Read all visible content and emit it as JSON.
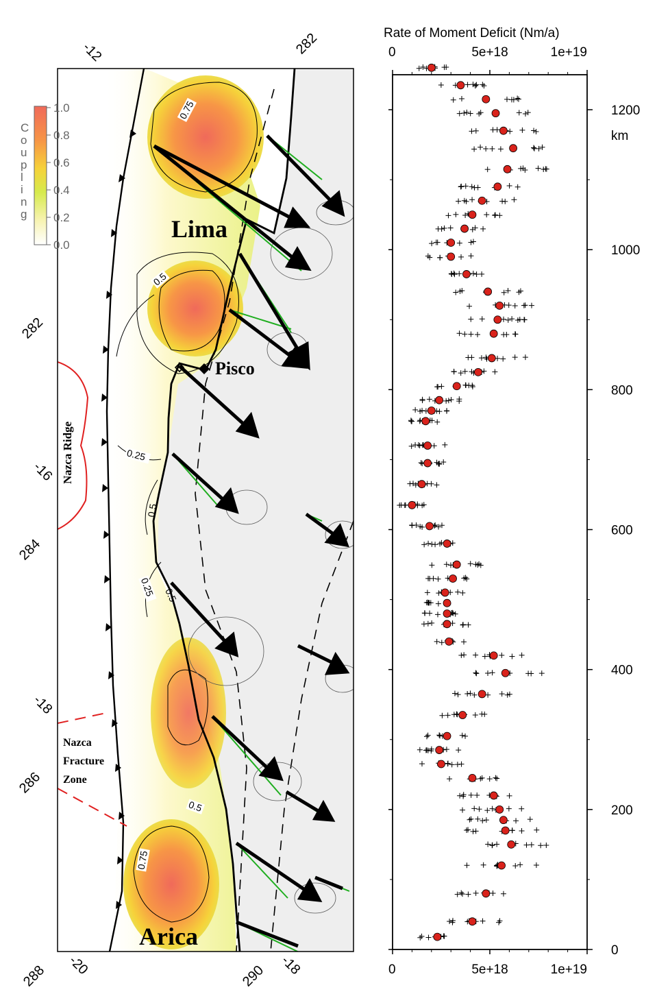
{
  "chart_data": [
    {
      "type": "map",
      "colorbar": {
        "label": "Coupling",
        "ticks": [
          "1.0",
          "0.8",
          "0.6",
          "0.4",
          "0.2",
          "0.0"
        ],
        "colors": [
          "#ffffff",
          "#f7f3b0",
          "#d6ea4c",
          "#f6d23a",
          "#f79646",
          "#f06a5a"
        ]
      },
      "frame_labels": {
        "top": [
          "-12",
          "282"
        ],
        "left": [
          "282",
          "-16",
          "284",
          "-18",
          "286"
        ],
        "bottom": [
          "288",
          "-20",
          "290",
          "-18"
        ]
      },
      "places": [
        "Lima",
        "Pisco",
        "Arica"
      ],
      "features": [
        "Nazca Ridge",
        "Nazca\nFracture\nZone"
      ],
      "contour_labels": [
        "0.75",
        "0.5",
        "0.25",
        "0.5",
        "0.25",
        "0.5",
        "0.5",
        "0.75"
      ]
    },
    {
      "type": "scatter",
      "title": "Rate of Moment Deficit (Nm/a)",
      "xlim": [
        0,
        1e+19
      ],
      "ylim": [
        0,
        1250
      ],
      "ylabel": "km",
      "x_ticks": [
        "0",
        "5e+18",
        "1e+19"
      ],
      "y_ticks": [
        "0",
        "200",
        "400",
        "600",
        "800",
        "1000",
        "1200"
      ],
      "series": [
        {
          "marker": "red circle",
          "color": "#d9231c",
          "x": [
            2.3e+18,
            4.1e+18,
            4.8e+18,
            5.6e+18,
            6.1e+18,
            5.8e+18,
            5.7e+18,
            5.5e+18,
            5.2e+18,
            4.1e+18,
            2.5e+18,
            2.4e+18,
            2.8e+18,
            3.6e+18,
            4.6e+18,
            5.8e+18,
            5.2e+18,
            2.9e+18,
            2.8e+18,
            2.8e+18,
            2.8e+18,
            2.7e+18,
            3.1e+18,
            3.3e+18,
            2.8e+18,
            1.9e+18,
            1e+18,
            1.5e+18,
            1.8e+18,
            1.8e+18,
            1.7e+18,
            2e+18,
            2.4e+18,
            3.3e+18,
            4.4e+18,
            5.1e+18,
            5.2e+18,
            5.4e+18,
            5.5e+18,
            4.9e+18,
            3.8e+18,
            3e+18,
            3e+18,
            3.7e+18,
            4.1e+18,
            4.6e+18,
            5.4e+18,
            5.9e+18,
            6.2e+18,
            5.7e+18,
            5.3e+18,
            4.8e+18,
            3.5e+18,
            2e+18
          ],
          "y": [
            18,
            40,
            80,
            120,
            150,
            170,
            185,
            200,
            220,
            245,
            265,
            285,
            305,
            335,
            365,
            395,
            420,
            440,
            465,
            480,
            495,
            510,
            530,
            550,
            580,
            605,
            635,
            665,
            695,
            720,
            755,
            770,
            785,
            805,
            825,
            845,
            880,
            900,
            920,
            940,
            965,
            990,
            1010,
            1030,
            1050,
            1070,
            1090,
            1115,
            1145,
            1170,
            1195,
            1215,
            1235,
            1260
          ]
        }
      ]
    }
  ]
}
